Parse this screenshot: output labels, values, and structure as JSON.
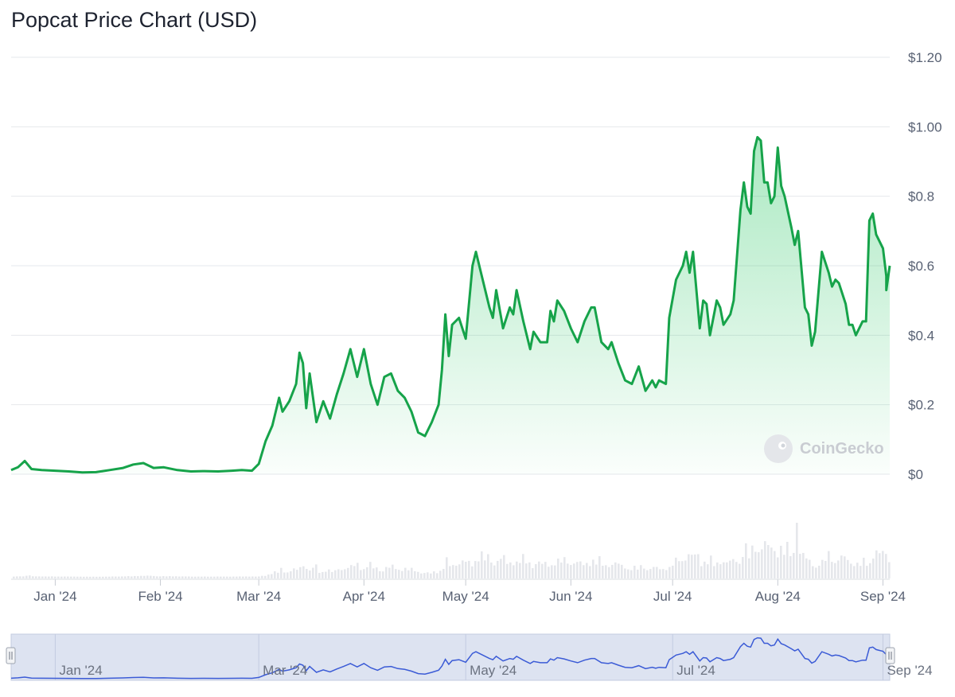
{
  "title": "Popcat Price Chart (USD)",
  "watermark": "CoinGecko",
  "colors": {
    "line": "#16a34a",
    "fill": "#22c55e",
    "grid": "#e6e8ec",
    "volume": "#e5e7eb",
    "navigator_bg": "#d9dfee",
    "navigator_line": "#3b5bd6"
  },
  "chart_data": {
    "type": "area",
    "title": "Popcat Price Chart (USD)",
    "xlabel": "",
    "ylabel": "",
    "x_range": [
      "2023-12-19",
      "2024-09-03"
    ],
    "ylim": [
      0,
      1.2
    ],
    "yticks": [
      {
        "value": 0,
        "label": "$0"
      },
      {
        "value": 0.2,
        "label": "$0.2"
      },
      {
        "value": 0.4,
        "label": "$0.4"
      },
      {
        "value": 0.6,
        "label": "$0.6"
      },
      {
        "value": 0.8,
        "label": "$0.8"
      },
      {
        "value": 1.0,
        "label": "$1.00"
      },
      {
        "value": 1.2,
        "label": "$1.20"
      }
    ],
    "xticks": [
      {
        "date": "2024-01-01",
        "label": "Jan '24"
      },
      {
        "date": "2024-02-01",
        "label": "Feb '24"
      },
      {
        "date": "2024-03-01",
        "label": "Mar '24"
      },
      {
        "date": "2024-04-01",
        "label": "Apr '24"
      },
      {
        "date": "2024-05-01",
        "label": "May '24"
      },
      {
        "date": "2024-06-01",
        "label": "Jun '24"
      },
      {
        "date": "2024-07-01",
        "label": "Jul '24"
      },
      {
        "date": "2024-08-01",
        "label": "Aug '24"
      },
      {
        "date": "2024-09-01",
        "label": "Sep '24"
      }
    ],
    "grid": true,
    "series": [
      {
        "values": [
          {
            "x": "2023-12-19",
            "y": 0.012
          },
          {
            "x": "2023-12-21",
            "y": 0.02
          },
          {
            "x": "2023-12-23",
            "y": 0.038
          },
          {
            "x": "2023-12-25",
            "y": 0.015
          },
          {
            "x": "2023-12-28",
            "y": 0.012
          },
          {
            "x": "2024-01-01",
            "y": 0.01
          },
          {
            "x": "2024-01-05",
            "y": 0.008
          },
          {
            "x": "2024-01-09",
            "y": 0.005
          },
          {
            "x": "2024-01-13",
            "y": 0.006
          },
          {
            "x": "2024-01-17",
            "y": 0.012
          },
          {
            "x": "2024-01-21",
            "y": 0.018
          },
          {
            "x": "2024-01-24",
            "y": 0.028
          },
          {
            "x": "2024-01-27",
            "y": 0.032
          },
          {
            "x": "2024-01-30",
            "y": 0.018
          },
          {
            "x": "2024-02-02",
            "y": 0.02
          },
          {
            "x": "2024-02-06",
            "y": 0.012
          },
          {
            "x": "2024-02-10",
            "y": 0.008
          },
          {
            "x": "2024-02-14",
            "y": 0.009
          },
          {
            "x": "2024-02-18",
            "y": 0.008
          },
          {
            "x": "2024-02-22",
            "y": 0.01
          },
          {
            "x": "2024-02-25",
            "y": 0.012
          },
          {
            "x": "2024-02-28",
            "y": 0.01
          },
          {
            "x": "2024-03-01",
            "y": 0.03
          },
          {
            "x": "2024-03-03",
            "y": 0.095
          },
          {
            "x": "2024-03-05",
            "y": 0.14
          },
          {
            "x": "2024-03-07",
            "y": 0.22
          },
          {
            "x": "2024-03-08",
            "y": 0.18
          },
          {
            "x": "2024-03-10",
            "y": 0.21
          },
          {
            "x": "2024-03-12",
            "y": 0.26
          },
          {
            "x": "2024-03-13",
            "y": 0.35
          },
          {
            "x": "2024-03-14",
            "y": 0.32
          },
          {
            "x": "2024-03-15",
            "y": 0.19
          },
          {
            "x": "2024-03-16",
            "y": 0.29
          },
          {
            "x": "2024-03-18",
            "y": 0.15
          },
          {
            "x": "2024-03-20",
            "y": 0.21
          },
          {
            "x": "2024-03-22",
            "y": 0.16
          },
          {
            "x": "2024-03-24",
            "y": 0.23
          },
          {
            "x": "2024-03-26",
            "y": 0.29
          },
          {
            "x": "2024-03-28",
            "y": 0.36
          },
          {
            "x": "2024-03-30",
            "y": 0.28
          },
          {
            "x": "2024-04-01",
            "y": 0.36
          },
          {
            "x": "2024-04-03",
            "y": 0.26
          },
          {
            "x": "2024-04-05",
            "y": 0.2
          },
          {
            "x": "2024-04-07",
            "y": 0.28
          },
          {
            "x": "2024-04-09",
            "y": 0.29
          },
          {
            "x": "2024-04-11",
            "y": 0.24
          },
          {
            "x": "2024-04-13",
            "y": 0.22
          },
          {
            "x": "2024-04-15",
            "y": 0.18
          },
          {
            "x": "2024-04-17",
            "y": 0.12
          },
          {
            "x": "2024-04-19",
            "y": 0.11
          },
          {
            "x": "2024-04-21",
            "y": 0.15
          },
          {
            "x": "2024-04-23",
            "y": 0.2
          },
          {
            "x": "2024-04-24",
            "y": 0.3
          },
          {
            "x": "2024-04-25",
            "y": 0.46
          },
          {
            "x": "2024-04-26",
            "y": 0.34
          },
          {
            "x": "2024-04-27",
            "y": 0.43
          },
          {
            "x": "2024-04-29",
            "y": 0.45
          },
          {
            "x": "2024-05-01",
            "y": 0.39
          },
          {
            "x": "2024-05-03",
            "y": 0.6
          },
          {
            "x": "2024-05-04",
            "y": 0.64
          },
          {
            "x": "2024-05-06",
            "y": 0.56
          },
          {
            "x": "2024-05-08",
            "y": 0.48
          },
          {
            "x": "2024-05-09",
            "y": 0.45
          },
          {
            "x": "2024-05-10",
            "y": 0.53
          },
          {
            "x": "2024-05-12",
            "y": 0.42
          },
          {
            "x": "2024-05-14",
            "y": 0.48
          },
          {
            "x": "2024-05-15",
            "y": 0.46
          },
          {
            "x": "2024-05-16",
            "y": 0.53
          },
          {
            "x": "2024-05-18",
            "y": 0.44
          },
          {
            "x": "2024-05-20",
            "y": 0.36
          },
          {
            "x": "2024-05-21",
            "y": 0.41
          },
          {
            "x": "2024-05-23",
            "y": 0.38
          },
          {
            "x": "2024-05-25",
            "y": 0.38
          },
          {
            "x": "2024-05-26",
            "y": 0.47
          },
          {
            "x": "2024-05-27",
            "y": 0.44
          },
          {
            "x": "2024-05-28",
            "y": 0.5
          },
          {
            "x": "2024-05-30",
            "y": 0.47
          },
          {
            "x": "2024-06-01",
            "y": 0.42
          },
          {
            "x": "2024-06-03",
            "y": 0.38
          },
          {
            "x": "2024-06-05",
            "y": 0.44
          },
          {
            "x": "2024-06-07",
            "y": 0.48
          },
          {
            "x": "2024-06-08",
            "y": 0.48
          },
          {
            "x": "2024-06-10",
            "y": 0.38
          },
          {
            "x": "2024-06-12",
            "y": 0.36
          },
          {
            "x": "2024-06-13",
            "y": 0.38
          },
          {
            "x": "2024-06-15",
            "y": 0.32
          },
          {
            "x": "2024-06-17",
            "y": 0.27
          },
          {
            "x": "2024-06-19",
            "y": 0.26
          },
          {
            "x": "2024-06-21",
            "y": 0.31
          },
          {
            "x": "2024-06-23",
            "y": 0.24
          },
          {
            "x": "2024-06-25",
            "y": 0.27
          },
          {
            "x": "2024-06-26",
            "y": 0.25
          },
          {
            "x": "2024-06-27",
            "y": 0.27
          },
          {
            "x": "2024-06-29",
            "y": 0.26
          },
          {
            "x": "2024-06-30",
            "y": 0.45
          },
          {
            "x": "2024-07-02",
            "y": 0.56
          },
          {
            "x": "2024-07-04",
            "y": 0.6
          },
          {
            "x": "2024-07-05",
            "y": 0.64
          },
          {
            "x": "2024-07-06",
            "y": 0.58
          },
          {
            "x": "2024-07-07",
            "y": 0.64
          },
          {
            "x": "2024-07-09",
            "y": 0.42
          },
          {
            "x": "2024-07-10",
            "y": 0.5
          },
          {
            "x": "2024-07-11",
            "y": 0.49
          },
          {
            "x": "2024-07-12",
            "y": 0.4
          },
          {
            "x": "2024-07-14",
            "y": 0.5
          },
          {
            "x": "2024-07-15",
            "y": 0.48
          },
          {
            "x": "2024-07-16",
            "y": 0.43
          },
          {
            "x": "2024-07-18",
            "y": 0.46
          },
          {
            "x": "2024-07-19",
            "y": 0.5
          },
          {
            "x": "2024-07-21",
            "y": 0.76
          },
          {
            "x": "2024-07-22",
            "y": 0.84
          },
          {
            "x": "2024-07-23",
            "y": 0.77
          },
          {
            "x": "2024-07-24",
            "y": 0.75
          },
          {
            "x": "2024-07-25",
            "y": 0.93
          },
          {
            "x": "2024-07-26",
            "y": 0.97
          },
          {
            "x": "2024-07-27",
            "y": 0.96
          },
          {
            "x": "2024-07-28",
            "y": 0.84
          },
          {
            "x": "2024-07-29",
            "y": 0.84
          },
          {
            "x": "2024-07-30",
            "y": 0.78
          },
          {
            "x": "2024-07-31",
            "y": 0.8
          },
          {
            "x": "2024-08-01",
            "y": 0.94
          },
          {
            "x": "2024-08-02",
            "y": 0.83
          },
          {
            "x": "2024-08-03",
            "y": 0.8
          },
          {
            "x": "2024-08-05",
            "y": 0.71
          },
          {
            "x": "2024-08-06",
            "y": 0.66
          },
          {
            "x": "2024-08-07",
            "y": 0.7
          },
          {
            "x": "2024-08-09",
            "y": 0.48
          },
          {
            "x": "2024-08-10",
            "y": 0.46
          },
          {
            "x": "2024-08-11",
            "y": 0.37
          },
          {
            "x": "2024-08-12",
            "y": 0.41
          },
          {
            "x": "2024-08-14",
            "y": 0.64
          },
          {
            "x": "2024-08-16",
            "y": 0.58
          },
          {
            "x": "2024-08-17",
            "y": 0.54
          },
          {
            "x": "2024-08-18",
            "y": 0.56
          },
          {
            "x": "2024-08-19",
            "y": 0.55
          },
          {
            "x": "2024-08-21",
            "y": 0.49
          },
          {
            "x": "2024-08-22",
            "y": 0.43
          },
          {
            "x": "2024-08-23",
            "y": 0.43
          },
          {
            "x": "2024-08-24",
            "y": 0.4
          },
          {
            "x": "2024-08-26",
            "y": 0.44
          },
          {
            "x": "2024-08-27",
            "y": 0.44
          },
          {
            "x": "2024-08-28",
            "y": 0.73
          },
          {
            "x": "2024-08-29",
            "y": 0.75
          },
          {
            "x": "2024-08-30",
            "y": 0.69
          },
          {
            "x": "2024-08-31",
            "y": 0.67
          },
          {
            "x": "2024-09-01",
            "y": 0.65
          },
          {
            "x": "2024-09-02",
            "y": 0.57
          },
          {
            "x": "2024-09-02",
            "y": 0.53
          },
          {
            "x": "2024-09-03",
            "y": 0.6
          }
        ]
      }
    ]
  },
  "navigator": {
    "labels": [
      {
        "date": "2024-01-01",
        "label": "Jan '24"
      },
      {
        "date": "2024-03-01",
        "label": "Mar '24"
      },
      {
        "date": "2024-05-01",
        "label": "May '24"
      },
      {
        "date": "2024-07-01",
        "label": "Jul '24"
      },
      {
        "date": "2024-09-01",
        "label": "Sep '24"
      }
    ]
  }
}
